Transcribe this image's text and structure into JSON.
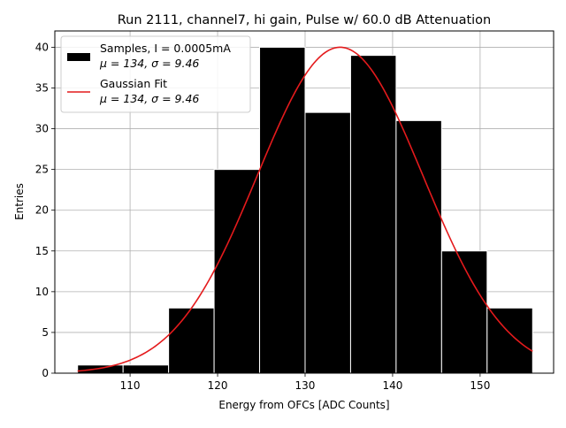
{
  "chart_data": {
    "type": "bar",
    "title": "Run 2111, channel7, hi gain, Pulse w/ 60.0 dB Attenuation",
    "xlabel": "Energy from OFCs [ADC Counts]",
    "ylabel": "Entries",
    "xlim": [
      101.4,
      158.4
    ],
    "ylim": [
      0,
      42
    ],
    "grid": true,
    "legend_position": "top-left",
    "x_ticks": [
      110,
      120,
      130,
      140,
      150
    ],
    "y_ticks": [
      0,
      5,
      10,
      15,
      20,
      25,
      30,
      35,
      40
    ],
    "bins": {
      "edges": [
        104.0,
        109.2,
        114.4,
        119.6,
        124.8,
        130.0,
        135.2,
        140.4,
        145.6,
        150.8,
        156.0
      ],
      "values": [
        1,
        1,
        8,
        25,
        40,
        32,
        39,
        31,
        15,
        8
      ],
      "color": "#000000",
      "edgecolor": "#ffffff"
    },
    "fit": {
      "mu": 134,
      "sigma": 9.46,
      "amplitude": 40,
      "x_range": [
        104.0,
        156.0
      ],
      "color": "#e41a1c"
    },
    "legend": [
      {
        "line1": "Samples, I = 0.0005mA",
        "line2": "μ = 134, σ = 9.46"
      },
      {
        "line1": "Gaussian Fit",
        "line2": "μ = 134, σ = 9.46"
      }
    ]
  }
}
